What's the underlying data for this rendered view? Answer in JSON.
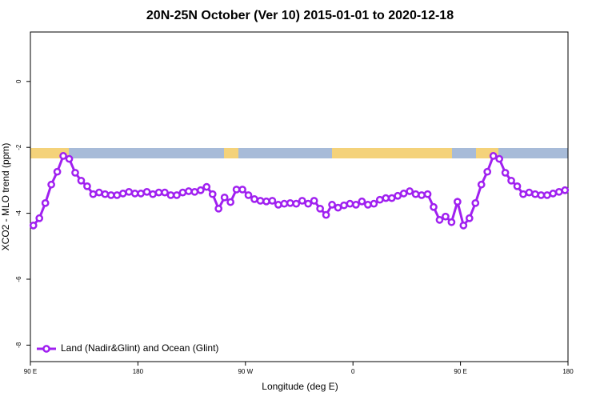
{
  "chart_data": {
    "type": "line",
    "title": "20N-25N October (Ver 10)   2015-01-01 to 2020-12-18",
    "x_label": "Longitude (deg E)",
    "y_label": "XCO2 - MLO trend (ppm)",
    "xlim": [
      90,
      540
    ],
    "ylim": [
      -8.5,
      1.5
    ],
    "xticks": [
      {
        "value": 90,
        "label": "90 E"
      },
      180,
      {
        "value": 270,
        "label": "90 W"
      },
      {
        "value": 360,
        "label": "0"
      },
      {
        "value": 450,
        "label": "90 E"
      },
      {
        "value": 540,
        "label": "180"
      }
    ],
    "yticks": [
      0,
      -2,
      -4,
      -6,
      -8
    ],
    "legend": "bottom left",
    "x": [
      92.5,
      97.5,
      102.5,
      107.5,
      112.5,
      117.5,
      122.5,
      127.5,
      132.5,
      137.5,
      142.5,
      147.5,
      152.5,
      157.5,
      162.5,
      167.5,
      172.5,
      177.5,
      182.5,
      187.5,
      192.5,
      197.5,
      202.5,
      207.5,
      212.5,
      217.5,
      222.5,
      227.5,
      232.5,
      237.5,
      242.5,
      247.5,
      252.5,
      257.5,
      262.5,
      267.5,
      272.5,
      277.5,
      282.5,
      287.5,
      292.5,
      297.5,
      302.5,
      307.5,
      312.5,
      317.5,
      322.5,
      327.5,
      332.5,
      337.5,
      342.5,
      347.5,
      352.5,
      357.5,
      362.5,
      367.5,
      372.5,
      377.5,
      382.5,
      387.5,
      392.5,
      397.5,
      402.5,
      407.5,
      412.5,
      417.5,
      422.5,
      427.5,
      432.5,
      437.5,
      442.5,
      447.5,
      452.5,
      457.5,
      462.5,
      467.5,
      472.5,
      477.5,
      482.5,
      487.5,
      492.5,
      497.5,
      502.5,
      507.5,
      512.5,
      517.5,
      522.5,
      527.5,
      532.5,
      537.5
    ],
    "series": [
      {
        "name": "Land (Nadir&Glint) and Ocean (Glint)",
        "color": "#a020f0",
        "values": [
          -4.37,
          -4.15,
          -3.69,
          -3.13,
          -2.74,
          -2.26,
          -2.35,
          -2.77,
          -3.01,
          -3.18,
          -3.42,
          -3.37,
          -3.42,
          -3.45,
          -3.45,
          -3.4,
          -3.35,
          -3.4,
          -3.4,
          -3.35,
          -3.42,
          -3.37,
          -3.37,
          -3.45,
          -3.45,
          -3.37,
          -3.33,
          -3.35,
          -3.3,
          -3.2,
          -3.42,
          -3.86,
          -3.52,
          -3.66,
          -3.28,
          -3.28,
          -3.45,
          -3.57,
          -3.62,
          -3.64,
          -3.62,
          -3.74,
          -3.71,
          -3.69,
          -3.71,
          -3.62,
          -3.71,
          -3.62,
          -3.86,
          -4.05,
          -3.74,
          -3.83,
          -3.76,
          -3.71,
          -3.74,
          -3.64,
          -3.74,
          -3.71,
          -3.59,
          -3.54,
          -3.54,
          -3.47,
          -3.4,
          -3.33,
          -3.42,
          -3.45,
          -3.42,
          -3.81,
          -4.2,
          -4.1,
          -4.27,
          -3.65,
          -4.37,
          -4.15,
          -3.69,
          -3.13,
          -2.74,
          -2.26,
          -2.35,
          -2.77,
          -3.01,
          -3.18,
          -3.42,
          -3.37,
          -3.42,
          -3.45,
          -3.45,
          -3.4,
          -3.35,
          -3.3
        ]
      }
    ]
  }
}
